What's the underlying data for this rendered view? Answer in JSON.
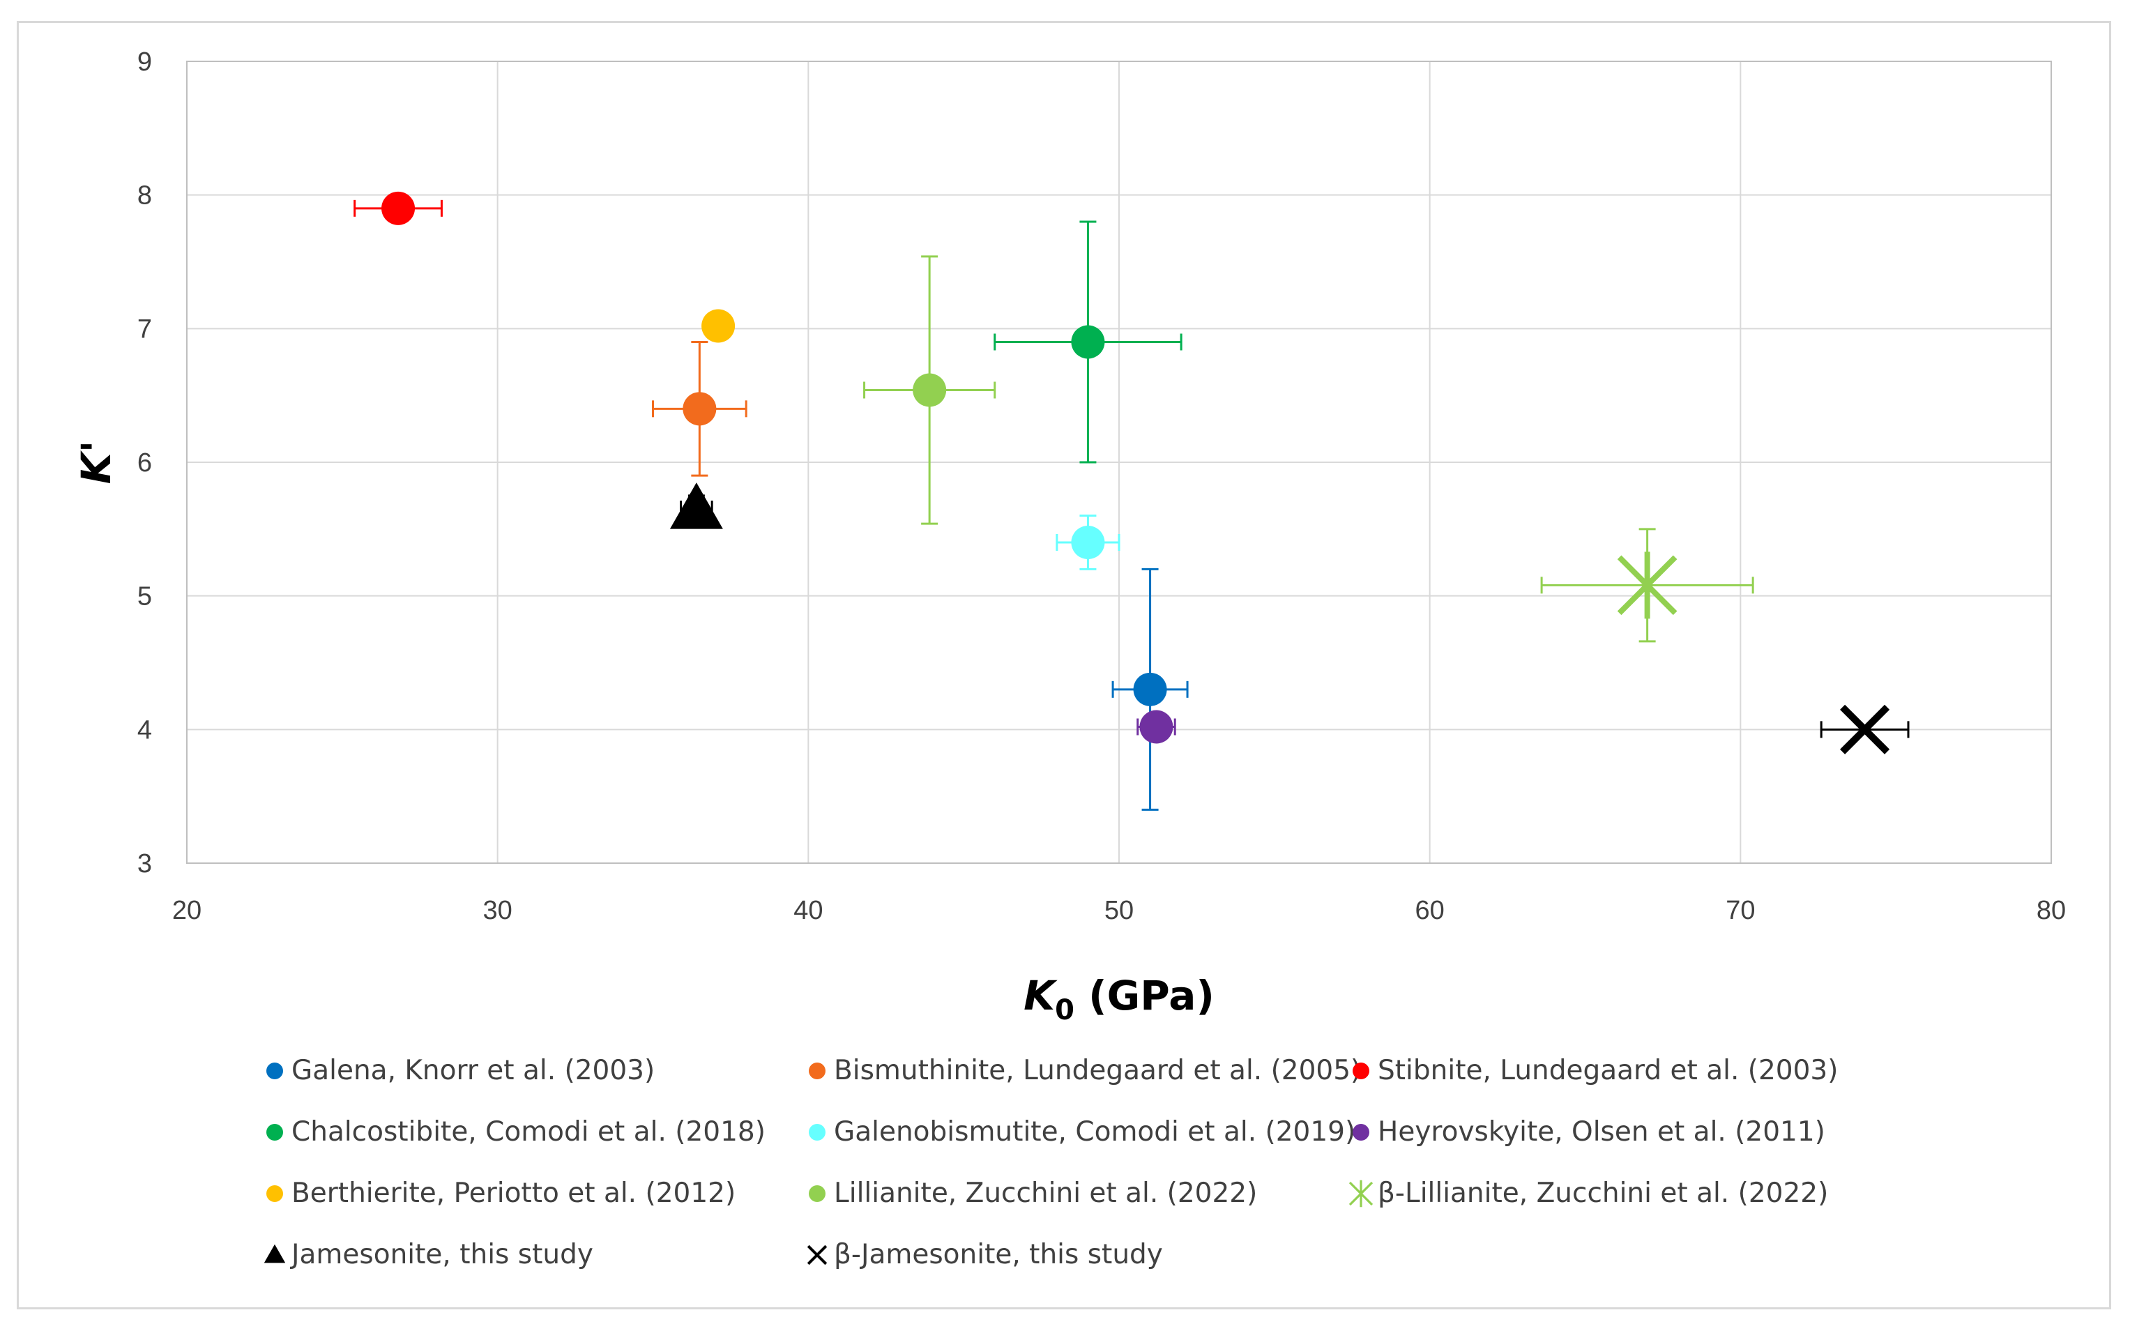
{
  "chart_data": {
    "type": "scatter",
    "title": "",
    "xlabel": {
      "main": "K",
      "sub": "0",
      "rest": " (GPa)"
    },
    "ylabel": "K'",
    "xlim": [
      20,
      80
    ],
    "ylim": [
      3,
      9
    ],
    "x_ticks": [
      "20",
      "30",
      "40",
      "50",
      "60",
      "70",
      "80"
    ],
    "y_ticks": [
      "3",
      "4",
      "5",
      "6",
      "7",
      "8",
      "9"
    ],
    "grid": true,
    "legend_position": "bottom",
    "series": [
      {
        "name": "Galena, Knorr et al. (2003)",
        "color": "#0070c0",
        "marker": "circle",
        "x": 51.0,
        "y": 4.3,
        "xerr": 1.2,
        "yerr": 0.9
      },
      {
        "name": "Bismuthinite, Lundegaard et al. (2005)",
        "color": "#f26b1d",
        "marker": "circle",
        "x": 36.5,
        "y": 6.4,
        "xerr": 1.5,
        "yerr": 0.5
      },
      {
        "name": "Stibnite, Lundegaard et al. (2003)",
        "color": "#ff0000",
        "marker": "circle",
        "x": 26.8,
        "y": 7.9,
        "xerr": 1.4,
        "yerr": 0
      },
      {
        "name": "Chalcostibite, Comodi et al. (2018)",
        "color": "#00b050",
        "marker": "circle",
        "x": 49.0,
        "y": 6.9,
        "xerr": 3.0,
        "yerr": 0.9
      },
      {
        "name": "Galenobismutite, Comodi et al. (2019)",
        "color": "#66ffff",
        "marker": "circle",
        "x": 49.0,
        "y": 5.4,
        "xerr": 1.0,
        "yerr": 0.2
      },
      {
        "name": "Heyrovskyite, Olsen et al. (2011)",
        "color": "#7030a0",
        "marker": "circle",
        "x": 51.2,
        "y": 4.02,
        "xerr": 0.6,
        "yerr": 0
      },
      {
        "name": "Berthierite, Periotto et al. (2012)",
        "color": "#ffc000",
        "marker": "circle",
        "x": 37.1,
        "y": 7.02,
        "xerr": 0,
        "yerr": 0
      },
      {
        "name": "Lillianite, Zucchini et al. (2022)",
        "color": "#92d050",
        "marker": "circle",
        "x": 43.9,
        "y": 6.54,
        "xerr": 2.1,
        "yerr": 1.0
      },
      {
        "name": "β-Lillianite, Zucchini et al. (2022)",
        "color": "#92d050",
        "marker": "star",
        "x": 67.0,
        "y": 5.08,
        "xerr": 3.4,
        "yerr": 0.42
      },
      {
        "name": "Jamesonite, this study",
        "color": "#000000",
        "marker": "triangle",
        "x": 36.4,
        "y": 5.65,
        "xerr": 0.5,
        "yerr": 0.1
      },
      {
        "name": "β-Jamesonite, this study",
        "color": "#000000",
        "marker": "x",
        "x": 74.0,
        "y": 4.0,
        "xerr": 1.4,
        "yerr": 0
      }
    ]
  }
}
